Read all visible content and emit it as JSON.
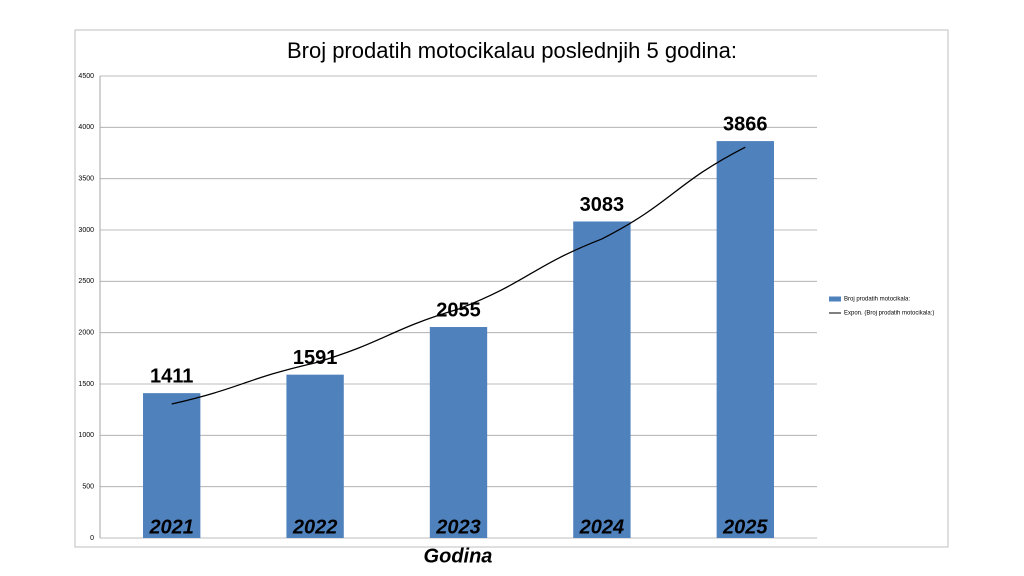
{
  "chart_data": {
    "type": "bar",
    "title": "Broj prodatih motocikalau poslednjih 5 godina:",
    "x_label": "Godina",
    "categories": [
      "2021",
      "2022",
      "2023",
      "2024",
      "2025"
    ],
    "series": [
      {
        "name": "Broj prodatih motocikala:",
        "type": "bar",
        "color": "#4f81bd",
        "values": [
          1411,
          1591,
          2055,
          3083,
          3866
        ]
      },
      {
        "name": "Expon. (Broj prodatih motocikala:)",
        "type": "line",
        "color": "#000000",
        "values": [
          1305,
          1706,
          2230,
          2913,
          3807
        ]
      }
    ],
    "ylim": [
      0,
      4500
    ],
    "yticks": [
      0,
      500,
      1000,
      1500,
      2000,
      2500,
      3000,
      3500,
      4000,
      4500
    ],
    "grid": true,
    "legend": "right"
  }
}
